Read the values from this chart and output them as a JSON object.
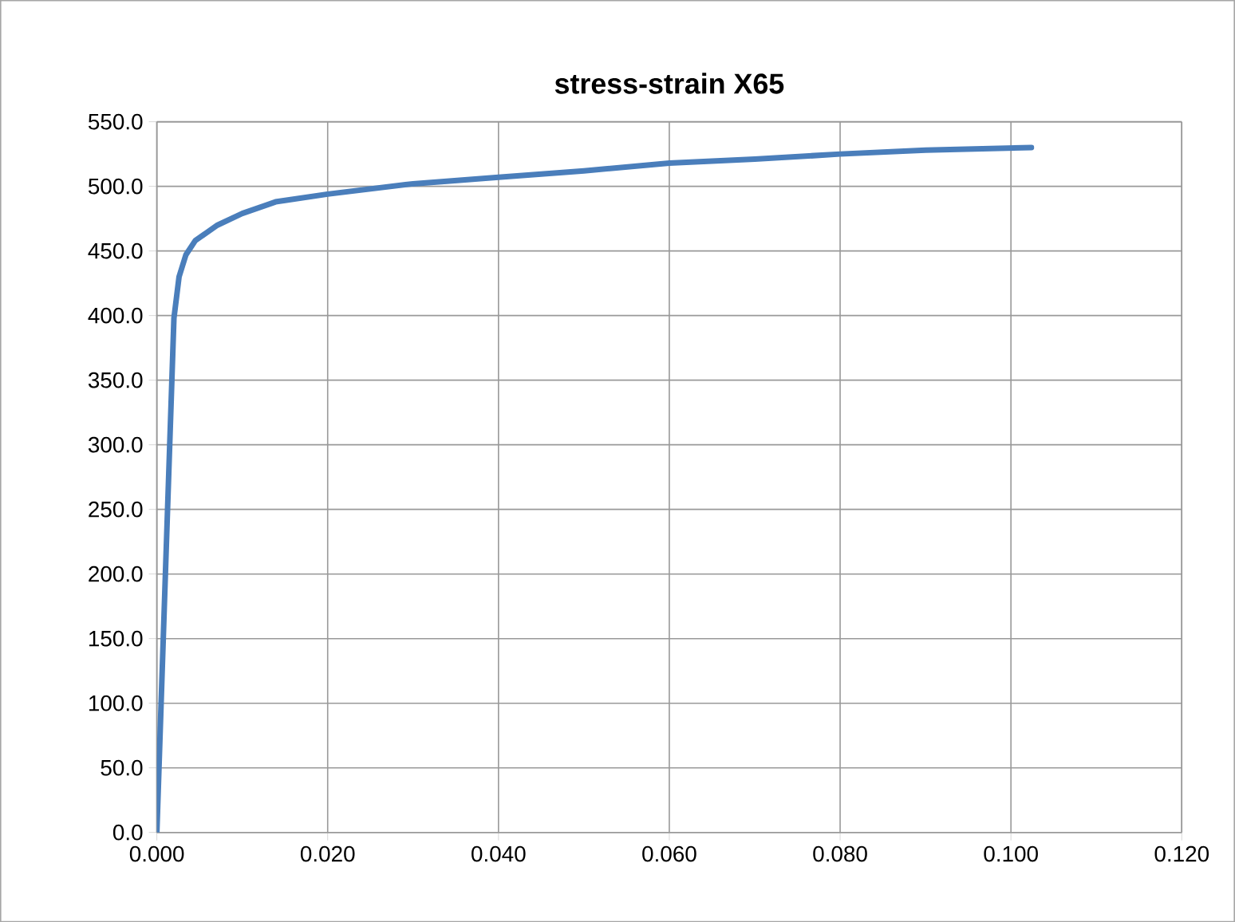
{
  "chart_data": {
    "type": "line",
    "title": "stress-strain X65",
    "x": [
      0,
      0.001,
      0.002,
      0.0026,
      0.0034,
      0.0045,
      0.0071,
      0.01,
      0.0139,
      0.02,
      0.03,
      0.04,
      0.05,
      0.06,
      0.07,
      0.08,
      0.09,
      0.1024
    ],
    "series": [
      {
        "color": "#4a7ebb",
        "values": [
          0,
          200,
          398,
          430,
          447,
          458,
          470,
          479,
          488,
          494,
          502,
          507,
          512,
          518,
          521,
          525,
          528,
          530
        ]
      }
    ],
    "xlim": [
      0,
      0.12
    ],
    "xticks": [
      {
        "value": 0,
        "label": "0.000"
      },
      {
        "value": 0.02,
        "label": "0.020"
      },
      {
        "value": 0.04,
        "label": "0.040"
      },
      {
        "value": 0.06,
        "label": "0.060"
      },
      {
        "value": 0.08,
        "label": "0.080"
      },
      {
        "value": 0.1,
        "label": "0.100"
      },
      {
        "value": 0.12,
        "label": "0.120"
      }
    ],
    "ylim": [
      0,
      550
    ],
    "yticks": [
      {
        "value": 0,
        "label": "0.0"
      },
      {
        "value": 50,
        "label": "50.0"
      },
      {
        "value": 100,
        "label": "100.0"
      },
      {
        "value": 150,
        "label": "150.0"
      },
      {
        "value": 200,
        "label": "200.0"
      },
      {
        "value": 250,
        "label": "250.0"
      },
      {
        "value": 300,
        "label": "300.0"
      },
      {
        "value": 350,
        "label": "350.0"
      },
      {
        "value": 400,
        "label": "400.0"
      },
      {
        "value": 450,
        "label": "450.0"
      },
      {
        "value": 500,
        "label": "500.0"
      },
      {
        "value": 550,
        "label": "550.0"
      }
    ],
    "grid": true,
    "marker": "none",
    "line_style": "solid"
  }
}
